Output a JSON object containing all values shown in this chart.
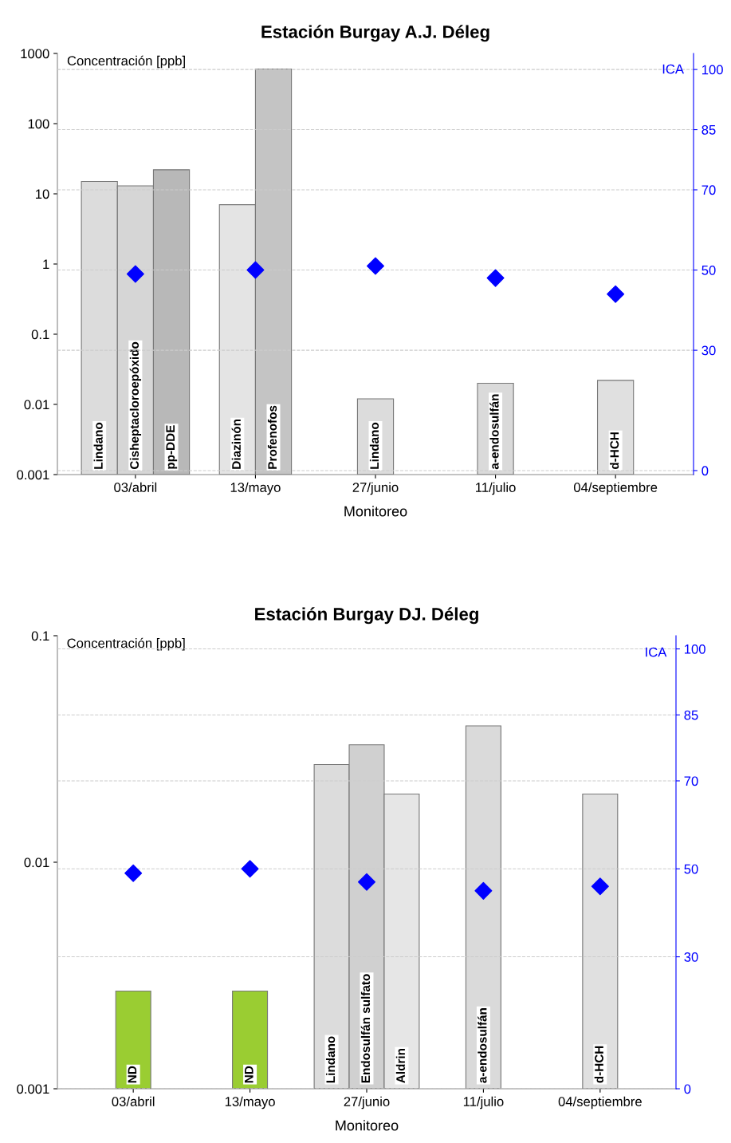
{
  "chart_data": [
    {
      "type": "bar",
      "title": "Estación Burgay A.J. Déleg",
      "xlabel": "Monitoreo",
      "ylabel": "Concentración [ppb]",
      "y2label": "ICA",
      "categories": [
        "03/abril",
        "13/mayo",
        "27/junio",
        "11/julio",
        "04/septiembre"
      ],
      "log": "y",
      "ylim": [
        0.001,
        1000
      ],
      "yticks": [
        0.001,
        0.01,
        0.1,
        1,
        10,
        100,
        1000
      ],
      "y2lim": [
        -1,
        104
      ],
      "y2ticks": [
        0,
        30,
        50,
        70,
        85,
        100
      ],
      "grid": "y2",
      "legend": false,
      "series": [
        {
          "name": "Lindano",
          "color": "#dcdcdc",
          "values": [
            15,
            null,
            0.012,
            null,
            null
          ]
        },
        {
          "name": "Cisheptacloroepóxido",
          "color": "#d6d6d6",
          "values": [
            13,
            null,
            null,
            null,
            null
          ]
        },
        {
          "name": "pp-DDE",
          "color": "#b8b8b8",
          "values": [
            22,
            null,
            null,
            null,
            null
          ]
        },
        {
          "name": "Diazinón",
          "color": "#e4e4e4",
          "values": [
            null,
            7,
            null,
            null,
            null
          ]
        },
        {
          "name": "Profenofos",
          "color": "#c4c4c4",
          "values": [
            null,
            600,
            null,
            null,
            null
          ]
        },
        {
          "name": "a-endosulfán",
          "color": "#dadada",
          "values": [
            null,
            null,
            null,
            0.02,
            null
          ]
        },
        {
          "name": "d-HCH",
          "color": "#e0e0e0",
          "values": [
            null,
            null,
            null,
            null,
            0.022
          ]
        },
        {
          "type": "scatter",
          "axis": "y2",
          "marker": "diamond",
          "color": "#0000ff",
          "values": [
            49,
            50,
            51,
            48,
            44
          ]
        }
      ]
    },
    {
      "type": "bar",
      "title": "Estación Burgay DJ. Déleg",
      "xlabel": "Monitoreo",
      "ylabel": "Concentración [ppb]",
      "y2label": "ICA",
      "categories": [
        "03/abril",
        "13/mayo",
        "27/junio",
        "11/julio",
        "04/septiembre"
      ],
      "log": "y",
      "ylim": [
        0.001,
        0.1
      ],
      "yticks": [
        0.001,
        0.01,
        0.1
      ],
      "y2lim": [
        0,
        103
      ],
      "y2ticks": [
        0,
        30,
        50,
        70,
        85,
        100
      ],
      "grid": "y2",
      "legend": false,
      "series": [
        {
          "name": "ND",
          "color": "#9acd32",
          "values": [
            0.0027,
            0.0027,
            null,
            null,
            null
          ]
        },
        {
          "name": "Lindano",
          "color": "#dcdcdc",
          "values": [
            null,
            null,
            0.027,
            null,
            null
          ]
        },
        {
          "name": "Endosulfán sulfato",
          "color": "#d0d0d0",
          "values": [
            null,
            null,
            0.033,
            null,
            null
          ]
        },
        {
          "name": "Aldrin",
          "color": "#e6e6e6",
          "values": [
            null,
            null,
            0.02,
            null,
            null
          ]
        },
        {
          "name": "a-endosulfán",
          "color": "#dadada",
          "values": [
            null,
            null,
            null,
            0.04,
            null
          ]
        },
        {
          "name": "d-HCH",
          "color": "#e0e0e0",
          "values": [
            null,
            null,
            null,
            null,
            0.02
          ]
        },
        {
          "type": "scatter",
          "axis": "y2",
          "marker": "diamond",
          "color": "#0000ff",
          "values": [
            49,
            50,
            47,
            45,
            46
          ]
        }
      ]
    }
  ]
}
